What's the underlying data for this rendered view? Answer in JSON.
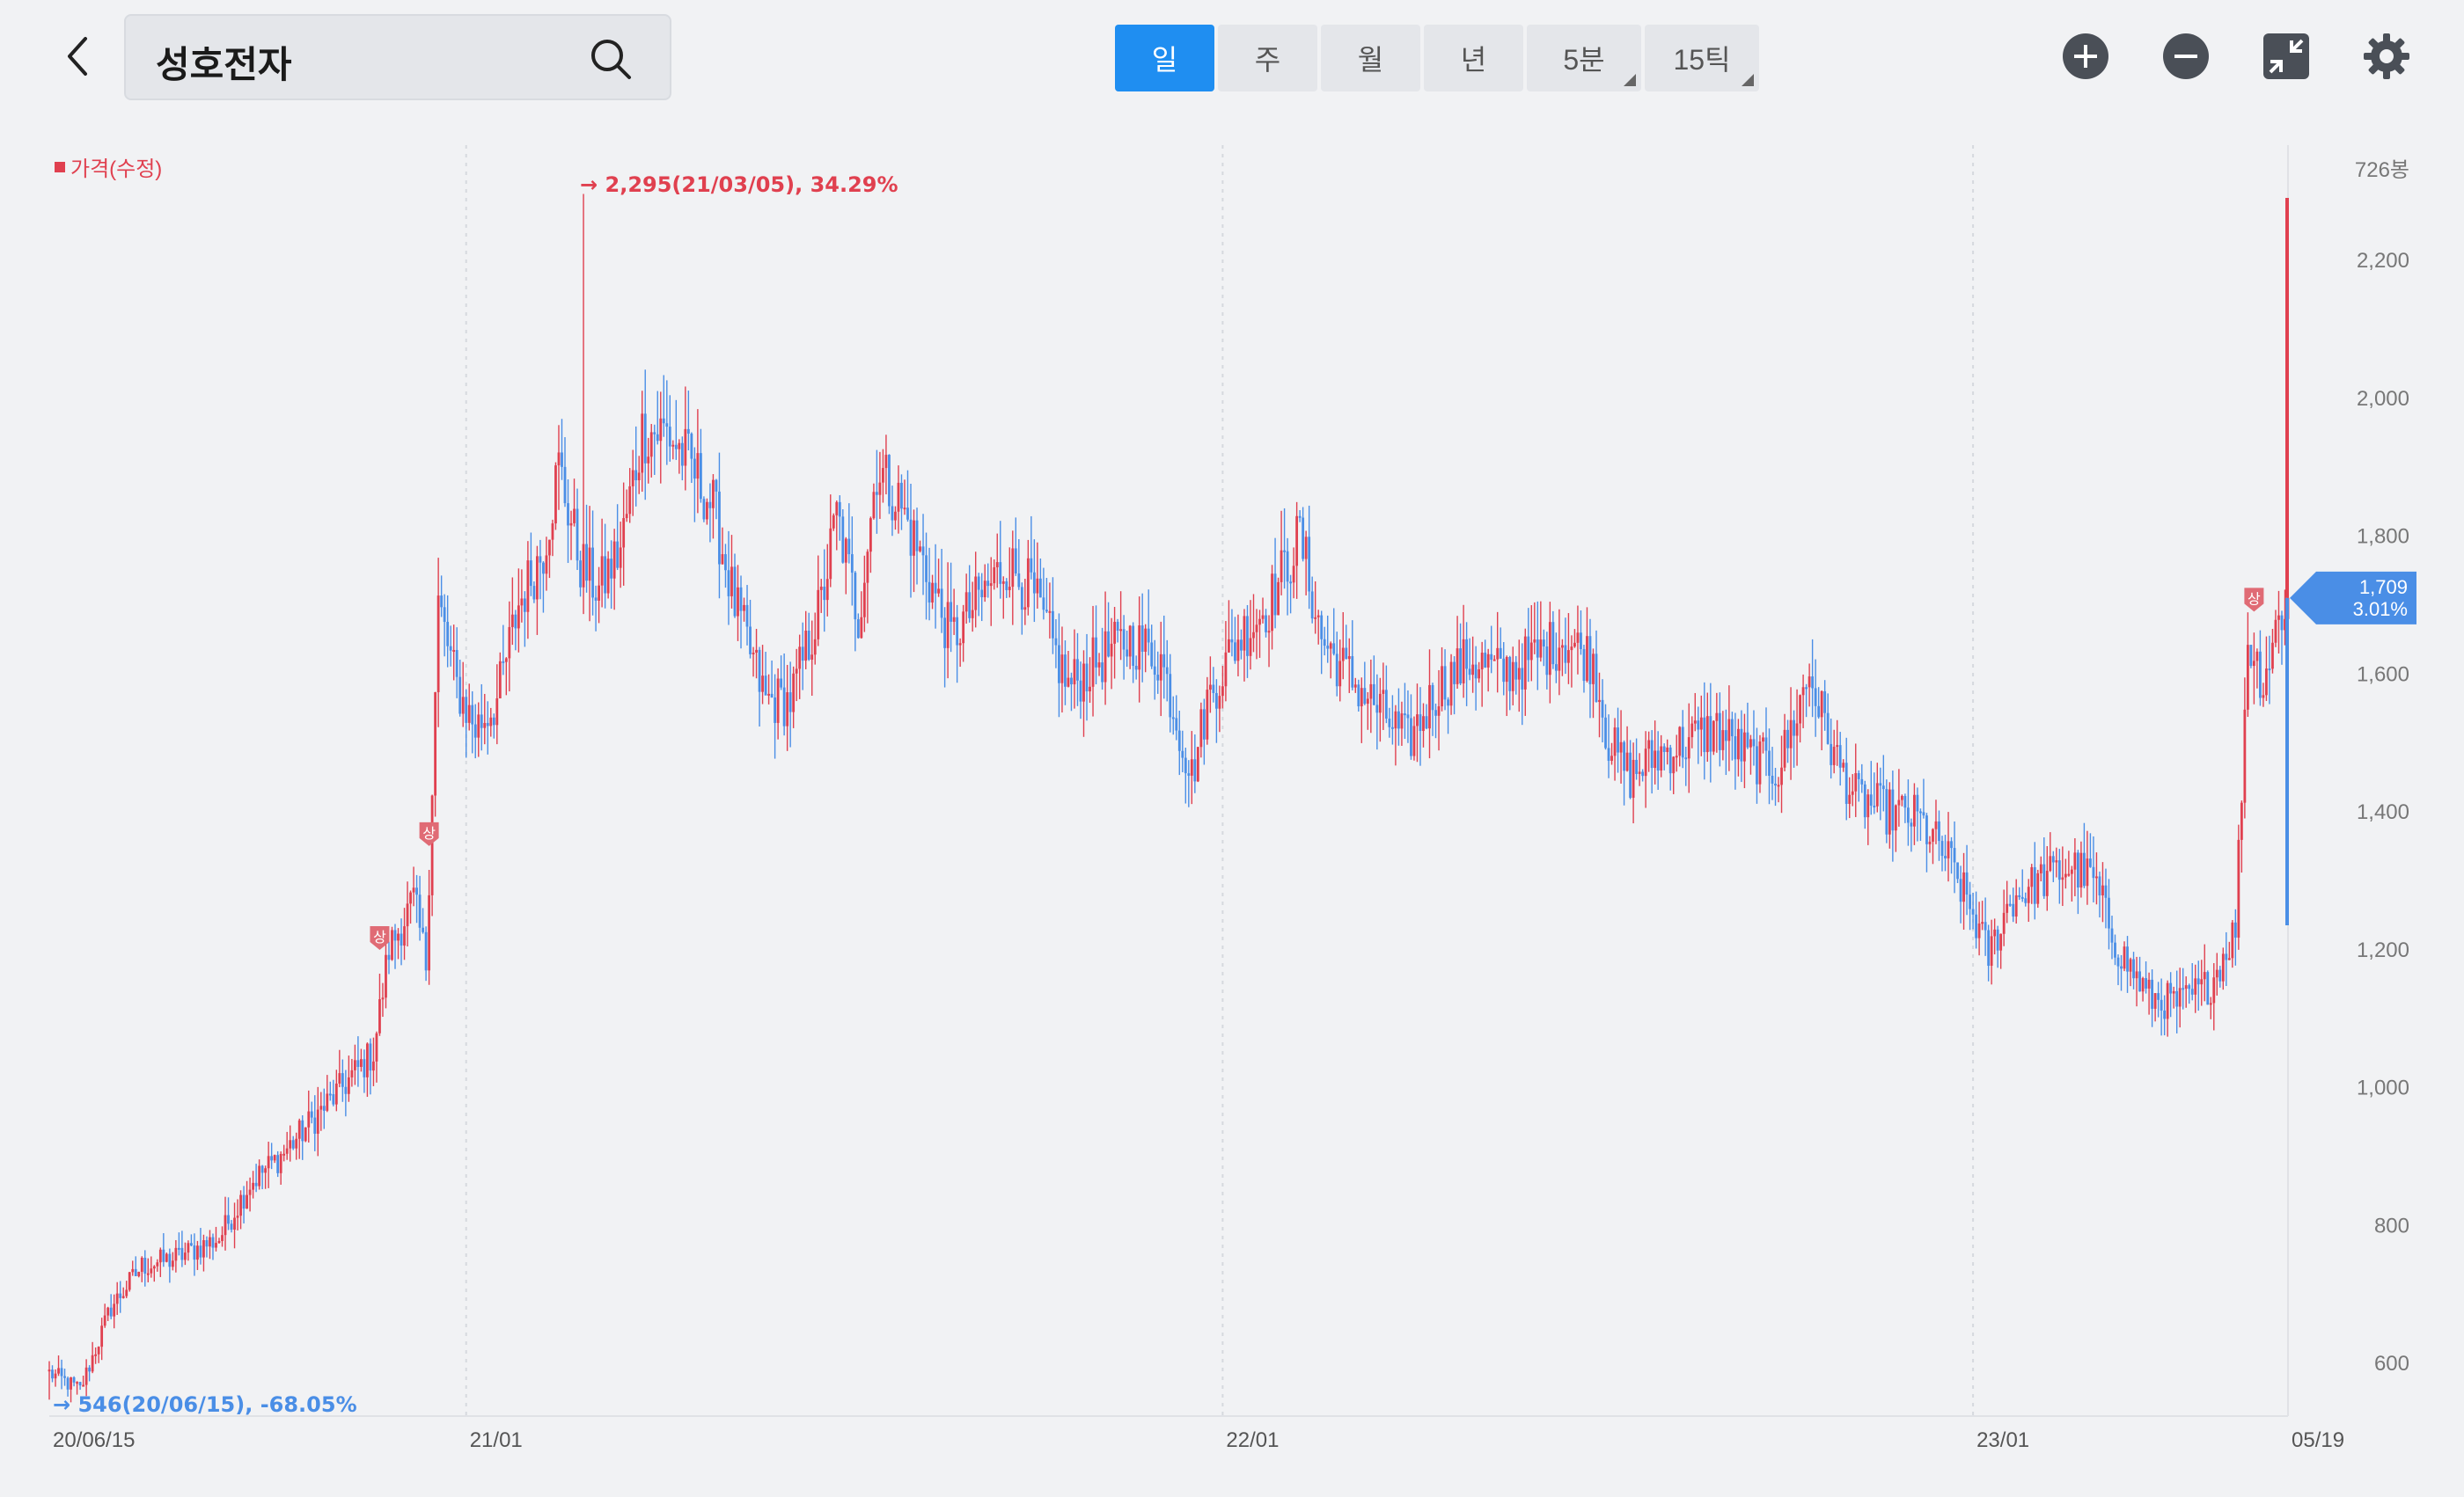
{
  "header": {
    "stock_name": "성호전자",
    "tabs": [
      {
        "label": "일",
        "active": true,
        "corner": false
      },
      {
        "label": "주",
        "active": false,
        "corner": false
      },
      {
        "label": "월",
        "active": false,
        "corner": false
      },
      {
        "label": "년",
        "active": false,
        "corner": false
      },
      {
        "label": "5분",
        "active": false,
        "corner": true
      },
      {
        "label": "15틱",
        "active": false,
        "corner": true
      }
    ],
    "tools": [
      "zoom-in-icon",
      "zoom-out-icon",
      "collapse-icon",
      "gear-icon"
    ]
  },
  "legend": {
    "label": "가격(수정)"
  },
  "colors": {
    "up": "#e0404f",
    "down": "#4a8ee6",
    "accent": "#1f8ef1",
    "grid": "#d6d9de"
  },
  "chart_data": {
    "type": "candlestick",
    "candle_count_label": "726봉",
    "y_ticks": [
      2200,
      2000,
      1800,
      1600,
      1400,
      1200,
      1000,
      800,
      600
    ],
    "y_tick_labels": [
      "2,200",
      "2,000",
      "1,800",
      "1,600",
      "1,400",
      "1,200",
      "1,000",
      "800",
      "600"
    ],
    "ylim": [
      510,
      2360
    ],
    "x_labels": [
      {
        "label": "20/06/15",
        "index": 0
      },
      {
        "label": "21/01",
        "index": 135
      },
      {
        "label": "22/01",
        "index": 380
      },
      {
        "label": "23/01",
        "index": 623
      },
      {
        "label": "05/19",
        "index": 725
      }
    ],
    "x_gridlines": [
      135,
      380,
      623
    ],
    "series": [
      {
        "name": "가격(수정)",
        "points": [
          [
            0,
            585
          ],
          [
            10,
            560
          ],
          [
            20,
            680
          ],
          [
            30,
            740
          ],
          [
            40,
            750
          ],
          [
            55,
            780
          ],
          [
            65,
            860
          ],
          [
            75,
            900
          ],
          [
            85,
            950
          ],
          [
            95,
            1000
          ],
          [
            105,
            1050
          ],
          [
            110,
            1200
          ],
          [
            118,
            1270
          ],
          [
            122,
            1180
          ],
          [
            126,
            1700
          ],
          [
            132,
            1580
          ],
          [
            138,
            1520
          ],
          [
            145,
            1560
          ],
          [
            152,
            1700
          ],
          [
            160,
            1780
          ],
          [
            165,
            1900
          ],
          [
            172,
            1760
          ],
          [
            178,
            1720
          ],
          [
            185,
            1780
          ],
          [
            192,
            1950
          ],
          [
            200,
            1950
          ],
          [
            208,
            1900
          ],
          [
            215,
            1840
          ],
          [
            222,
            1700
          ],
          [
            232,
            1560
          ],
          [
            240,
            1560
          ],
          [
            250,
            1700
          ],
          [
            255,
            1830
          ],
          [
            262,
            1680
          ],
          [
            268,
            1900
          ],
          [
            275,
            1850
          ],
          [
            283,
            1760
          ],
          [
            292,
            1650
          ],
          [
            300,
            1700
          ],
          [
            310,
            1760
          ],
          [
            318,
            1720
          ],
          [
            330,
            1580
          ],
          [
            340,
            1620
          ],
          [
            350,
            1650
          ],
          [
            360,
            1620
          ],
          [
            370,
            1450
          ],
          [
            375,
            1560
          ],
          [
            385,
            1650
          ],
          [
            395,
            1700
          ],
          [
            405,
            1800
          ],
          [
            412,
            1650
          ],
          [
            420,
            1600
          ],
          [
            430,
            1550
          ],
          [
            440,
            1500
          ],
          [
            450,
            1580
          ],
          [
            460,
            1620
          ],
          [
            470,
            1600
          ],
          [
            480,
            1620
          ],
          [
            490,
            1650
          ],
          [
            500,
            1620
          ],
          [
            505,
            1500
          ],
          [
            512,
            1450
          ],
          [
            520,
            1480
          ],
          [
            530,
            1500
          ],
          [
            540,
            1520
          ],
          [
            550,
            1480
          ],
          [
            560,
            1460
          ],
          [
            570,
            1600
          ],
          [
            578,
            1480
          ],
          [
            585,
            1420
          ],
          [
            595,
            1400
          ],
          [
            605,
            1390
          ],
          [
            615,
            1330
          ],
          [
            623,
            1250
          ],
          [
            628,
            1190
          ],
          [
            635,
            1270
          ],
          [
            645,
            1300
          ],
          [
            655,
            1320
          ],
          [
            662,
            1300
          ],
          [
            670,
            1200
          ],
          [
            680,
            1130
          ],
          [
            690,
            1120
          ],
          [
            700,
            1150
          ],
          [
            708,
            1230
          ],
          [
            712,
            1650
          ],
          [
            717,
            1590
          ],
          [
            722,
            1680
          ],
          [
            725,
            1709
          ]
        ]
      }
    ],
    "current": {
      "price": "1,709",
      "change": "3.01%",
      "value": 1709
    },
    "annotations": {
      "high": {
        "text": "2,295(21/03/05), 34.29%",
        "value": 2295,
        "index": 173
      },
      "low": {
        "text": "546(20/06/15), -68.05%",
        "value": 546,
        "index": 0
      },
      "limit_up_markers": [
        {
          "label": "상",
          "index": 107
        },
        {
          "label": "상",
          "index": 123
        },
        {
          "label": "상",
          "index": 714
        }
      ]
    }
  }
}
